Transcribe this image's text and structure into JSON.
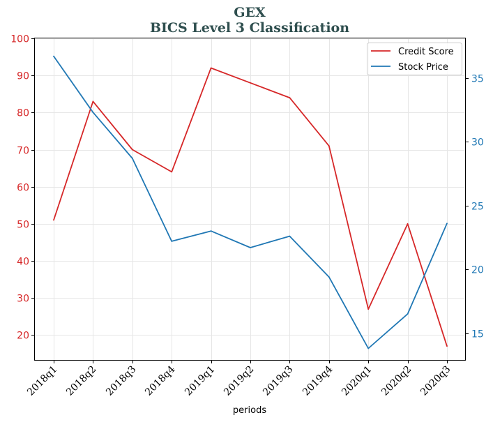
{
  "colors": {
    "credit": "#d62728",
    "stock": "#1f77b4",
    "title": "#2f4f4f",
    "grid": "#e6e6e6"
  },
  "chart_data": {
    "type": "line",
    "title": "GEX",
    "subtitle": "BICS Level 3 Classification",
    "xlabel": "periods",
    "ylabel_left": "",
    "ylabel_right": "",
    "categories": [
      "2018q1",
      "2018q2",
      "2018q3",
      "2018q4",
      "2019q1",
      "2019q2",
      "2019q3",
      "2019q4",
      "2020q1",
      "2020q2",
      "2020q3"
    ],
    "grid": true,
    "legend_position": "top-right",
    "left_axis": {
      "ylim": [
        13.3,
        100
      ],
      "ticks": [
        20,
        30,
        40,
        50,
        60,
        70,
        80,
        90,
        100
      ]
    },
    "right_axis": {
      "ylim": [
        12.9,
        38.1
      ],
      "ticks": [
        15,
        20,
        25,
        30,
        35
      ]
    },
    "series": [
      {
        "name": "Credit Score",
        "axis": "left",
        "color": "#d62728",
        "values": [
          51,
          83,
          70,
          64,
          92,
          88,
          84,
          71,
          27,
          50,
          17
        ]
      },
      {
        "name": "Stock Price",
        "axis": "right",
        "color": "#1f77b4",
        "values": [
          36.7,
          32.3,
          28.7,
          22.2,
          23.0,
          21.7,
          22.6,
          19.4,
          13.8,
          16.5,
          23.6
        ]
      }
    ]
  }
}
